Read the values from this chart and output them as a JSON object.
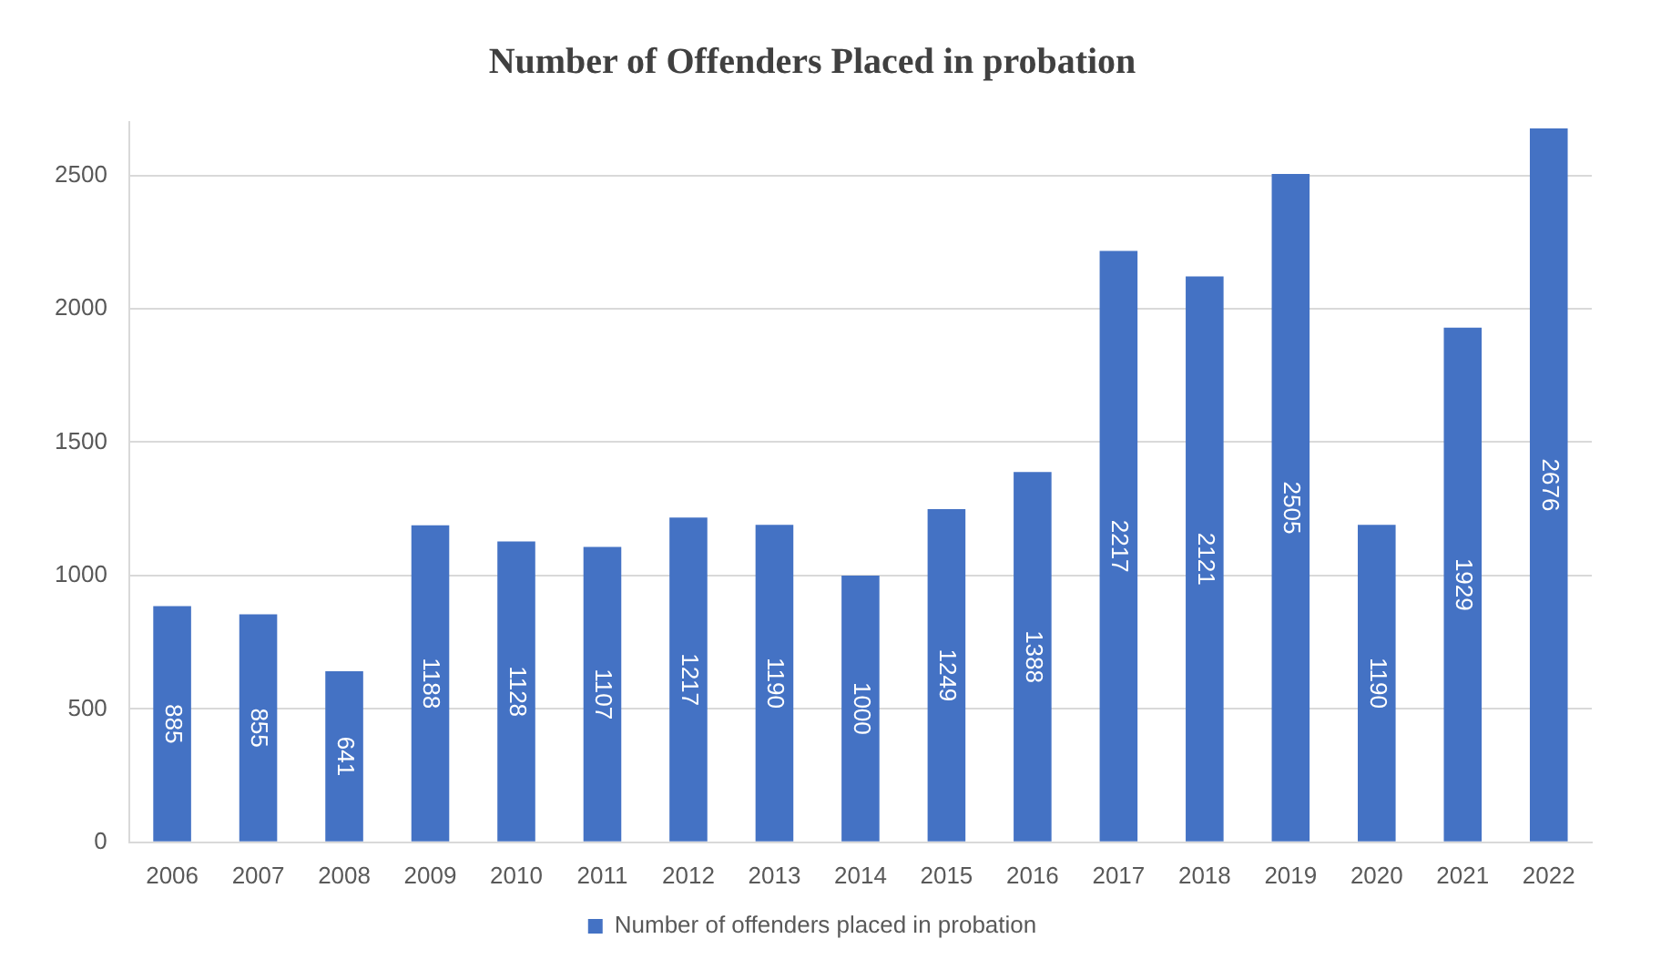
{
  "chart_data": {
    "type": "bar",
    "title": "Number of Offenders Placed in probation",
    "categories": [
      "2006",
      "2007",
      "2008",
      "2009",
      "2010",
      "2011",
      "2012",
      "2013",
      "2014",
      "2015",
      "2016",
      "2017",
      "2018",
      "2019",
      "2020",
      "2021",
      "2022"
    ],
    "series": [
      {
        "name": "Number of offenders placed in probation",
        "color": "#4472c4",
        "values": [
          885,
          855,
          641,
          1188,
          1128,
          1107,
          1217,
          1190,
          1000,
          1249,
          1388,
          2217,
          2121,
          2505,
          1190,
          1929,
          2676
        ]
      }
    ],
    "ylim": [
      0,
      2700
    ],
    "yticks": [
      0,
      500,
      1000,
      1500,
      2000,
      2500
    ],
    "grid": "y",
    "legend": "bottom",
    "data_labels": true
  }
}
